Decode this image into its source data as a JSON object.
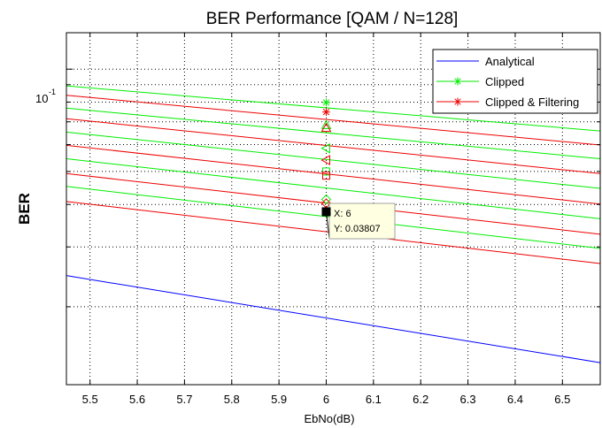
{
  "chart_data": {
    "type": "line",
    "title": "BER Performance [QAM / N=128]",
    "xlabel": "EbNo(dB)",
    "ylabel": "BER",
    "xlim": [
      5.45,
      6.58
    ],
    "ylim": [
      0.0118,
      0.128
    ],
    "yscale": "log",
    "grid": true,
    "legend_position": "top-right",
    "x_ticks": [
      "5.5",
      "5.6",
      "5.7",
      "5.8",
      "5.9",
      "6",
      "6.1",
      "6.2",
      "6.3",
      "6.4",
      "6.5"
    ],
    "y_tick_label": {
      "base": "10",
      "exponent": "-1",
      "value": 0.1
    },
    "x": [
      5.45,
      6.58
    ],
    "series": [
      {
        "name": "Analytical",
        "color": "#0000ff",
        "legend": true,
        "values": [
          0.0247,
          0.0137
        ]
      },
      {
        "name": "Clipped",
        "color": "#00ee00",
        "legend": true,
        "values": [
          0.0893,
          0.0658
        ]
      },
      {
        "name": "Clipped & Filtering",
        "color": "#ee0000",
        "legend": true,
        "values": [
          0.0838,
          0.0598
        ]
      },
      {
        "color": "#00ee00",
        "legend": false,
        "values": [
          0.0768,
          0.0545
        ]
      },
      {
        "color": "#ee0000",
        "legend": false,
        "values": [
          0.0715,
          0.0493
        ]
      },
      {
        "color": "#00ee00",
        "legend": false,
        "values": [
          0.0653,
          0.0446
        ]
      },
      {
        "color": "#ee0000",
        "legend": false,
        "values": [
          0.0597,
          0.0401
        ]
      },
      {
        "color": "#00ee00",
        "legend": false,
        "values": [
          0.0545,
          0.0363
        ]
      },
      {
        "color": "#ee0000",
        "legend": false,
        "values": [
          0.0493,
          0.0327
        ]
      },
      {
        "color": "#00ee00",
        "legend": false,
        "values": [
          0.0452,
          0.0297
        ]
      },
      {
        "color": "#ee0000",
        "legend": false,
        "values": [
          0.0408,
          0.0268
        ]
      }
    ],
    "markers": [
      {
        "x": 6,
        "y": 0.0798,
        "shape": "star",
        "color": "#00ee00"
      },
      {
        "x": 6,
        "y": 0.0748,
        "shape": "star",
        "color": "#ee0000"
      },
      {
        "x": 6,
        "y": 0.0685,
        "shape": "triangle-up",
        "color": "#00ee00"
      },
      {
        "x": 6,
        "y": 0.0672,
        "shape": "triangle-up",
        "color": "#ee0000"
      },
      {
        "x": 6,
        "y": 0.0585,
        "shape": "triangle-left",
        "color": "#00ee00"
      },
      {
        "x": 6,
        "y": 0.054,
        "shape": "triangle-left",
        "color": "#ee0000"
      },
      {
        "x": 6,
        "y": 0.05,
        "shape": "square",
        "color": "#00ee00"
      },
      {
        "x": 6,
        "y": 0.0486,
        "shape": "square",
        "color": "#ee0000"
      },
      {
        "x": 6,
        "y": 0.0414,
        "shape": "diamond",
        "color": "#00ee00"
      },
      {
        "x": 6,
        "y": 0.0403,
        "shape": "diamond",
        "color": "#ee0000"
      }
    ],
    "datatip": {
      "x": 6,
      "y": 0.03807,
      "line1": "X: 6",
      "line2": "Y: 0.03807"
    }
  }
}
